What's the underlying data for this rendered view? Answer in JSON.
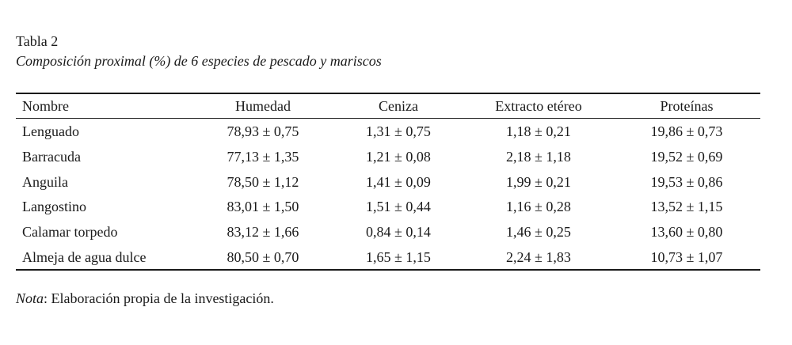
{
  "header": {
    "title": "Tabla 2",
    "subtitle": "Composición proximal (%) de 6 especies de pescado y mariscos"
  },
  "table": {
    "columns": [
      "Nombre",
      "Humedad",
      "Ceniza",
      "Extracto etéreo",
      "Proteínas"
    ],
    "rows": [
      [
        "Lenguado",
        "78,93 ± 0,75",
        "1,31 ± 0,75",
        "1,18 ± 0,21",
        "19,86 ± 0,73"
      ],
      [
        "Barracuda",
        "77,13 ± 1,35",
        "1,21 ± 0,08",
        "2,18 ± 1,18",
        "19,52 ± 0,69"
      ],
      [
        "Anguila",
        "78,50 ± 1,12",
        "1,41 ± 0,09",
        "1,99 ± 0,21",
        "19,53 ± 0,86"
      ],
      [
        "Langostino",
        "83,01 ± 1,50",
        "1,51 ± 0,44",
        "1,16 ± 0,28",
        "13,52 ± 1,15"
      ],
      [
        "Calamar torpedo",
        "83,12 ± 1,66",
        "0,84 ± 0,14",
        "1,46 ± 0,25",
        "13,60 ± 0,80"
      ],
      [
        "Almeja de agua dulce",
        "80,50 ± 0,70",
        "1,65 ± 1,15",
        "2,24 ± 1,83",
        "10,73 ± 1,07"
      ]
    ]
  },
  "note": {
    "label": "Nota",
    "text": ": Elaboración propia de la investigación."
  }
}
